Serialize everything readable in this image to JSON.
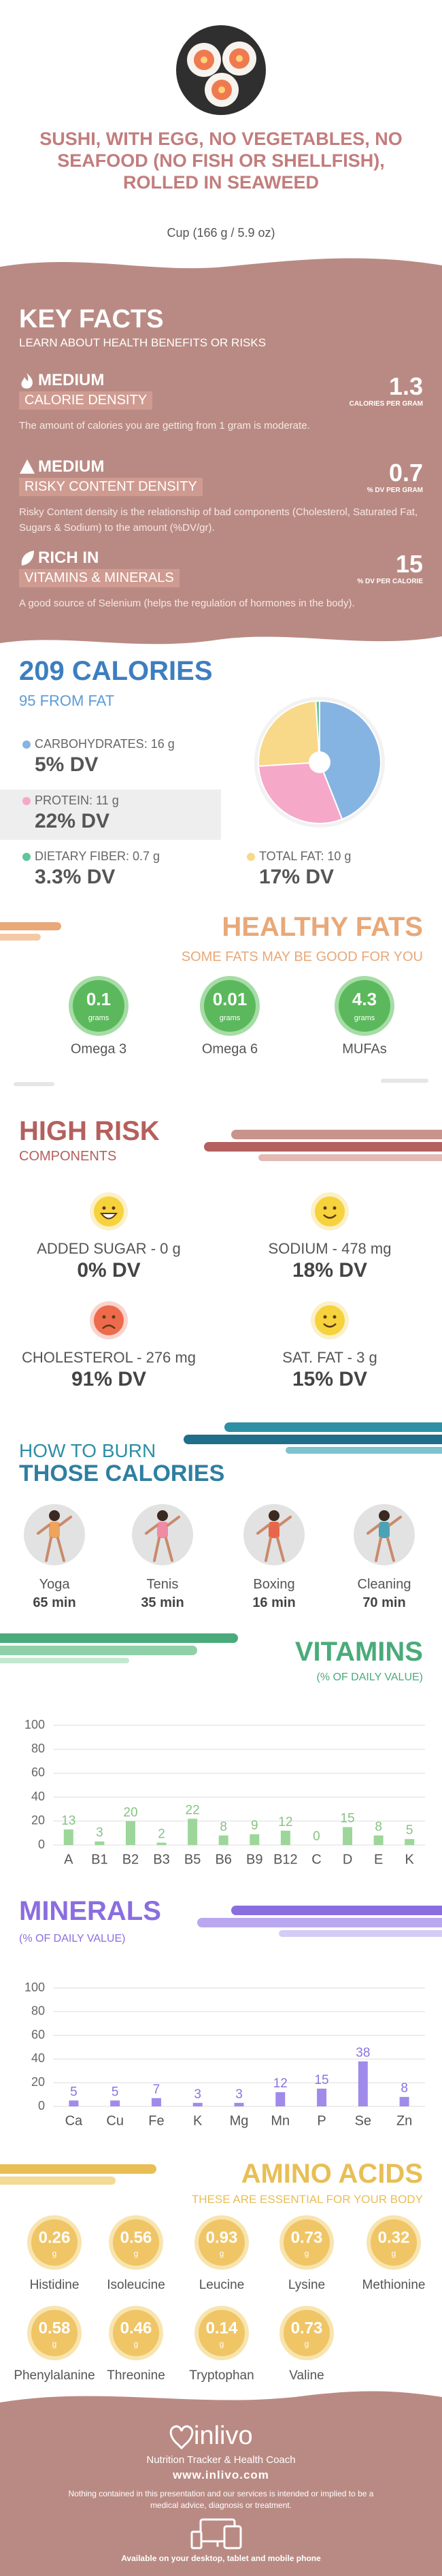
{
  "header": {
    "title": "SUSHI, WITH EGG, NO VEGETABLES, NO SEAFOOD (NO FISH OR SHELLFISH), ROLLED IN SEAWEED",
    "serving": "Cup (166 g / 5.9 oz)"
  },
  "key_facts": {
    "title": "KEY FACTS",
    "subtitle": "LEARN ABOUT HEALTH BENEFITS OR RISKS",
    "items": [
      {
        "level": "MEDIUM",
        "name": "CALORIE DENSITY",
        "value": 1.3,
        "unit": "CALORIES PER GRAM",
        "description": "The amount of calories you are getting from 1 gram is moderate."
      },
      {
        "level": "MEDIUM",
        "name": "RISKY CONTENT DENSITY",
        "value": 0.7,
        "unit": "% DV PER GRAM",
        "description": "Risky Content density is the relationship of bad components (Cholesterol, Saturated Fat, Sugars & Sodium) to the amount (%DV/gr)."
      },
      {
        "level": "RICH IN",
        "name": "VITAMINS & MINERALS",
        "value": 15,
        "unit": "% DV PER CALORIE",
        "description": "A good source of Selenium (helps the regulation of hormones in the body)."
      }
    ]
  },
  "calories": {
    "title": "209 CALORIES",
    "subtitle": "95 FROM FAT",
    "macros": [
      {
        "label": "CARBOHYDRATES: 16 g",
        "dv": "5% DV",
        "color": "#86b4e2"
      },
      {
        "label": "PROTEIN: 11 g",
        "dv": "22% DV",
        "color": "#f6a8c9"
      },
      {
        "label": "DIETARY FIBER: 0.7 g",
        "dv": "3.3% DV",
        "color": "#5cc79a"
      },
      {
        "label": "TOTAL FAT: 10 g",
        "dv": "17% DV",
        "color": "#f8d889"
      }
    ]
  },
  "healthy_fats": {
    "title": "HEALTHY FATS",
    "subtitle": "SOME FATS MAY BE GOOD FOR YOU",
    "items": [
      {
        "value": 0.1,
        "unit": "grams",
        "name": "Omega 3"
      },
      {
        "value": 0.01,
        "unit": "grams",
        "name": "Omega 6"
      },
      {
        "value": 4.3,
        "unit": "grams",
        "name": "MUFAs"
      }
    ]
  },
  "high_risk": {
    "title": "HIGH RISK",
    "subtitle": "COMPONENTS",
    "items": [
      {
        "label": "ADDED SUGAR - 0 g",
        "dv": "0% DV",
        "mood": "grin"
      },
      {
        "label": "SODIUM - 478 mg",
        "dv": "18% DV",
        "mood": "happy"
      },
      {
        "label": "CHOLESTEROL - 276 mg",
        "dv": "91% DV",
        "mood": "sad"
      },
      {
        "label": "SAT. FAT - 3 g",
        "dv": "15% DV",
        "mood": "happy"
      }
    ]
  },
  "burn": {
    "title_line_1": "HOW TO BURN",
    "title_line_2": "THOSE CALORIES",
    "items": [
      {
        "name": "Yoga",
        "time": "65 min"
      },
      {
        "name": "Tenis",
        "time": "35 min"
      },
      {
        "name": "Boxing",
        "time": "16 min"
      },
      {
        "name": "Cleaning",
        "time": "70 min"
      }
    ]
  },
  "amino_acids": {
    "title": "AMINO ACIDS",
    "subtitle": "THESE ARE ESSENTIAL FOR YOUR BODY",
    "items": [
      {
        "value": 0.26,
        "unit": "g",
        "name": "Histidine"
      },
      {
        "value": 0.56,
        "unit": "g",
        "name": "Isoleucine"
      },
      {
        "value": 0.93,
        "unit": "g",
        "name": "Leucine"
      },
      {
        "value": 0.73,
        "unit": "g",
        "name": "Lysine"
      },
      {
        "value": 0.32,
        "unit": "g",
        "name": "Methionine"
      },
      {
        "value": 0.58,
        "unit": "g",
        "name": "Phenylalanine"
      },
      {
        "value": 0.46,
        "unit": "g",
        "name": "Threonine"
      },
      {
        "value": 0.14,
        "unit": "g",
        "name": "Tryptophan"
      },
      {
        "value": 0.73,
        "unit": "g",
        "name": "Valine"
      }
    ]
  },
  "footer": {
    "brand": "inlivo",
    "tagline": "Nutrition Tracker & Health Coach",
    "url": "www.inlivo.com",
    "disclaimer": "Nothing contained in this presentation and our services is intended or implied to be a medical advice, diagnosis or treatment.",
    "available": "Available on your desktop, tablet and mobile phone"
  },
  "chart_data": [
    {
      "type": "pie",
      "values": [
        44,
        30,
        25,
        1
      ],
      "colors": [
        "#86b4e2",
        "#f6a8c9",
        "#f8d889",
        "#6cc89e"
      ]
    },
    {
      "type": "bar",
      "title": "VITAMINS",
      "subtitle": "(% OF DAILY VALUE)",
      "categories": [
        "A",
        "B1",
        "B2",
        "B3",
        "B5",
        "B6",
        "B9",
        "B12",
        "C",
        "D",
        "E",
        "K"
      ],
      "values": [
        13,
        3,
        20,
        2,
        22,
        8,
        9,
        12,
        0,
        15,
        8,
        5
      ],
      "color": "#9dd69a",
      "label_color": "#86c384",
      "ylim": [
        0,
        100
      ],
      "yticks": [
        0,
        20,
        40,
        60,
        80,
        100
      ],
      "grid": true
    },
    {
      "type": "bar",
      "title": "MINERALS",
      "subtitle": "(% OF DAILY VALUE)",
      "categories": [
        "Ca",
        "Cu",
        "Fe",
        "K",
        "Mg",
        "Mn",
        "P",
        "Se",
        "Zn"
      ],
      "values": [
        5,
        5,
        7,
        3,
        3,
        12,
        15,
        38,
        8
      ],
      "color": "#a08bea",
      "label_color": "#8a74e0",
      "ylim": [
        0,
        100
      ],
      "yticks": [
        0,
        20,
        40,
        60,
        80,
        100
      ],
      "grid": true
    }
  ]
}
